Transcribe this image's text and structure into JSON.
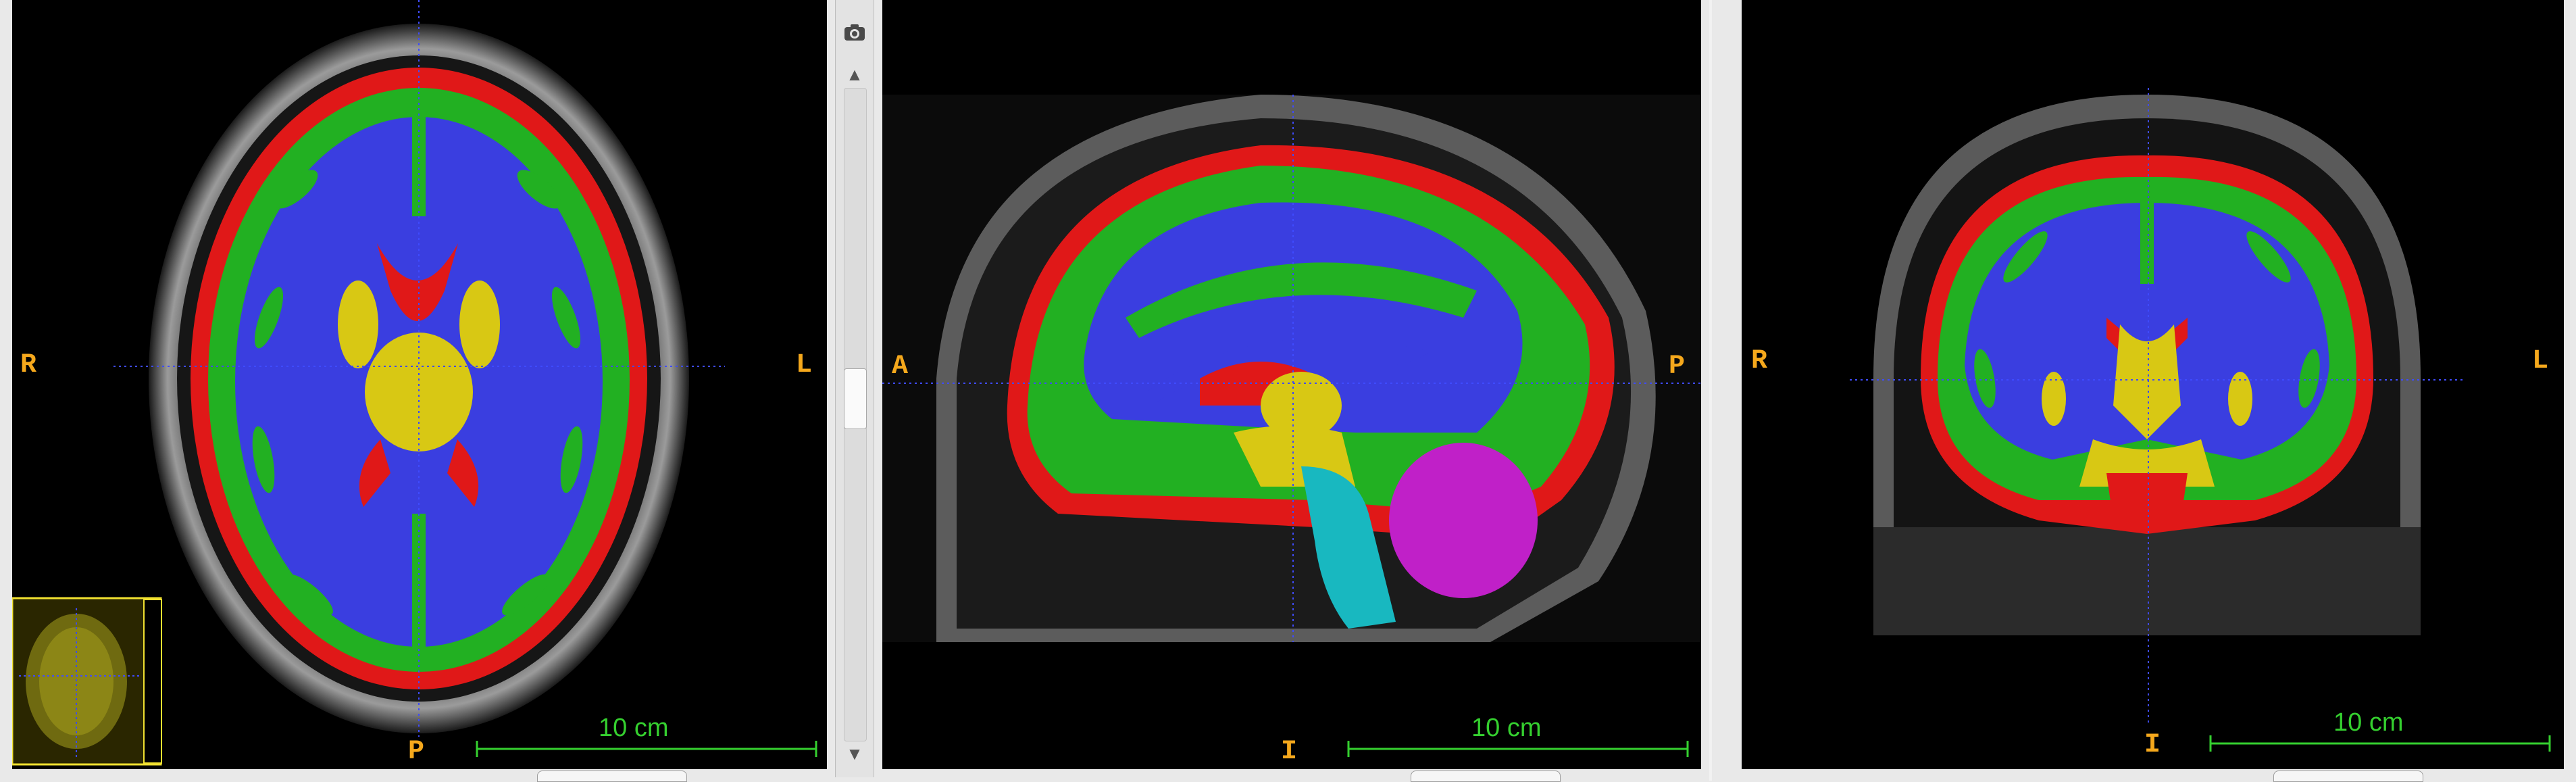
{
  "views": {
    "axial": {
      "left_label": "R",
      "right_label": "L",
      "bottom_label": "P",
      "scale_label": "10 cm"
    },
    "sagittal": {
      "left_label": "A",
      "right_label": "P",
      "bottom_label": "I",
      "scale_label": "10 cm"
    },
    "coronal": {
      "left_label": "R",
      "right_label": "L",
      "bottom_label": "I",
      "scale_label": "10 cm"
    }
  },
  "scrollbar": {
    "up_arrow": "▲",
    "down_arrow": "▼"
  },
  "colors": {
    "background": "#000000",
    "orientation_label": "#f5a81c",
    "scale_bar": "#35d02f",
    "crosshair": "#3f4bff",
    "scalp": "#8a8a8a",
    "csf_red": "#e01818",
    "gray_matter_green": "#22b022",
    "white_matter_blue": "#3a3ee0",
    "deep_gray_yellow": "#d8c814",
    "brainstem_cyan": "#18b8c0",
    "cerebellum_magenta": "#c020c8",
    "thumbnail_box": "#f0e030"
  },
  "icons": {
    "camera": "camera-icon"
  }
}
